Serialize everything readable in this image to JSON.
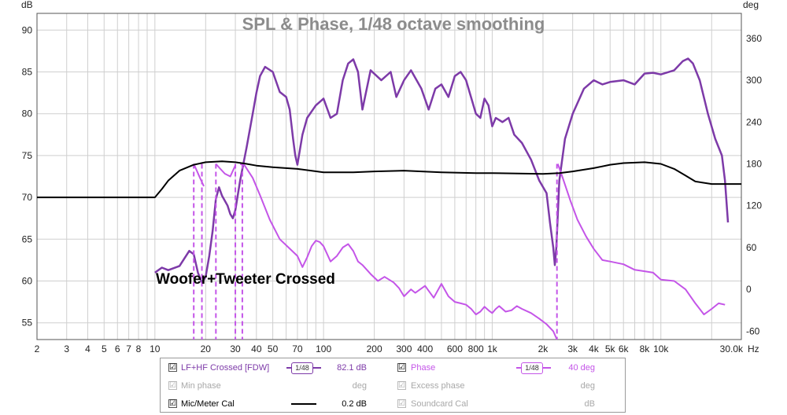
{
  "chart_data": {
    "type": "line",
    "title": "SPL & Phase, 1/48 octave smoothing",
    "ylabel_left": "dB",
    "ylabel_right": "deg",
    "x_unit": "Hz",
    "xlim": [
      2,
      30000
    ],
    "x_scale": "log",
    "ylim_left": [
      53,
      92
    ],
    "ylim_right": [
      -72,
      396
    ],
    "y_ticks_left": [
      55,
      60,
      65,
      70,
      75,
      80,
      85,
      90
    ],
    "y_ticks_right": [
      -60,
      0,
      60,
      120,
      180,
      240,
      300,
      360
    ],
    "y_tick_labels_right": [
      "-60",
      "0",
      "60",
      "120",
      "180",
      "240",
      "300",
      "360"
    ],
    "x_ticks": [
      {
        "v": 2,
        "label": "2"
      },
      {
        "v": 3,
        "label": "3"
      },
      {
        "v": 4,
        "label": "4"
      },
      {
        "v": 5,
        "label": "5"
      },
      {
        "v": 6,
        "label": "6"
      },
      {
        "v": 7,
        "label": "7"
      },
      {
        "v": 8,
        "label": "8"
      },
      {
        "v": 10,
        "label": "10"
      },
      {
        "v": 20,
        "label": "20"
      },
      {
        "v": 30,
        "label": "30"
      },
      {
        "v": 40,
        "label": "40"
      },
      {
        "v": 50,
        "label": "50"
      },
      {
        "v": 70,
        "label": "70"
      },
      {
        "v": 100,
        "label": "100"
      },
      {
        "v": 200,
        "label": "200"
      },
      {
        "v": 300,
        "label": "300"
      },
      {
        "v": 400,
        "label": "400"
      },
      {
        "v": 600,
        "label": "600"
      },
      {
        "v": 800,
        "label": "800"
      },
      {
        "v": 1000,
        "label": "1k"
      },
      {
        "v": 2000,
        "label": "2k"
      },
      {
        "v": 3000,
        "label": "3k"
      },
      {
        "v": 4000,
        "label": "4k"
      },
      {
        "v": 5000,
        "label": "5k"
      },
      {
        "v": 6000,
        "label": "6k"
      },
      {
        "v": 8000,
        "label": "8k"
      },
      {
        "v": 10000,
        "label": "10k"
      },
      {
        "v": 30000,
        "label": "30.0k"
      }
    ],
    "grid": true,
    "annotation": "Woofer+Tweeter Crossed",
    "series": [
      {
        "name": "LF+HF Crossed [FDW]",
        "axis": "left",
        "color": "#7d3aa8",
        "points": [
          [
            10,
            61.0
          ],
          [
            11,
            61.6
          ],
          [
            12,
            61.3
          ],
          [
            14,
            61.8
          ],
          [
            16,
            63.6
          ],
          [
            17,
            63.2
          ],
          [
            18,
            61.0
          ],
          [
            19,
            59.8
          ],
          [
            20,
            60.5
          ],
          [
            21,
            63.0
          ],
          [
            22,
            66.0
          ],
          [
            23,
            69.8
          ],
          [
            24,
            71.2
          ],
          [
            25,
            70.2
          ],
          [
            27,
            69.0
          ],
          [
            28,
            68.0
          ],
          [
            29,
            67.5
          ],
          [
            30,
            68.5
          ],
          [
            32,
            72.0
          ],
          [
            35,
            76.0
          ],
          [
            38,
            80.0
          ],
          [
            40,
            82.5
          ],
          [
            42,
            84.5
          ],
          [
            45,
            85.6
          ],
          [
            50,
            85.0
          ],
          [
            55,
            82.6
          ],
          [
            60,
            82.0
          ],
          [
            63,
            80.5
          ],
          [
            66,
            77.0
          ],
          [
            68,
            75.0
          ],
          [
            70,
            73.9
          ],
          [
            75,
            77.5
          ],
          [
            80,
            79.5
          ],
          [
            90,
            81.0
          ],
          [
            100,
            81.8
          ],
          [
            110,
            79.5
          ],
          [
            120,
            80.0
          ],
          [
            130,
            84.0
          ],
          [
            140,
            86.0
          ],
          [
            150,
            86.5
          ],
          [
            160,
            85.0
          ],
          [
            170,
            80.5
          ],
          [
            190,
            85.2
          ],
          [
            220,
            84.0
          ],
          [
            250,
            85.0
          ],
          [
            270,
            82.0
          ],
          [
            300,
            84.0
          ],
          [
            330,
            85.2
          ],
          [
            380,
            83.0
          ],
          [
            420,
            80.5
          ],
          [
            460,
            83.0
          ],
          [
            500,
            83.5
          ],
          [
            550,
            82.0
          ],
          [
            600,
            84.5
          ],
          [
            650,
            85.0
          ],
          [
            700,
            84.0
          ],
          [
            800,
            80.0
          ],
          [
            850,
            79.5
          ],
          [
            900,
            81.8
          ],
          [
            950,
            81.0
          ],
          [
            1000,
            78.5
          ],
          [
            1050,
            79.5
          ],
          [
            1150,
            79.0
          ],
          [
            1250,
            79.5
          ],
          [
            1350,
            77.5
          ],
          [
            1500,
            76.5
          ],
          [
            1700,
            74.5
          ],
          [
            1900,
            72.0
          ],
          [
            2100,
            70.5
          ],
          [
            2200,
            67.0
          ],
          [
            2300,
            64.0
          ],
          [
            2350,
            61.9
          ],
          [
            2400,
            64.0
          ],
          [
            2500,
            72.0
          ],
          [
            2700,
            77.0
          ],
          [
            3000,
            80.0
          ],
          [
            3500,
            83.0
          ],
          [
            4000,
            84.0
          ],
          [
            4500,
            83.5
          ],
          [
            5000,
            83.8
          ],
          [
            6000,
            84.0
          ],
          [
            7000,
            83.5
          ],
          [
            8000,
            84.8
          ],
          [
            9000,
            84.9
          ],
          [
            10000,
            84.7
          ],
          [
            12000,
            85.2
          ],
          [
            13500,
            86.3
          ],
          [
            14500,
            86.6
          ],
          [
            15500,
            86.0
          ],
          [
            17000,
            84.0
          ],
          [
            19000,
            80.0
          ],
          [
            21000,
            77.0
          ],
          [
            23000,
            75.0
          ],
          [
            24000,
            72.0
          ],
          [
            25000,
            67.0
          ]
        ]
      },
      {
        "name": "Phase",
        "axis": "right",
        "color": "#c455e8",
        "segments": [
          [
            [
              17.0,
              180
            ],
            [
              17.6,
              172
            ],
            [
              18.5,
              160
            ],
            [
              19.5,
              148
            ]
          ],
          [
            [
              23.0,
              180
            ],
            [
              24.0,
              175
            ],
            [
              26.0,
              166
            ],
            [
              28.0,
              162
            ],
            [
              30.0,
              178
            ]
          ],
          [
            [
              32.0,
              180
            ],
            [
              34.0,
              178
            ],
            [
              38.0,
              160
            ],
            [
              42.0,
              135
            ],
            [
              48.0,
              100
            ],
            [
              55.0,
              72
            ],
            [
              62.0,
              60
            ],
            [
              70.0,
              48
            ],
            [
              75.0,
              32
            ],
            [
              80.0,
              46
            ],
            [
              85.0,
              62
            ],
            [
              90.0,
              70
            ],
            [
              95.0,
              68
            ],
            [
              100.0,
              62
            ],
            [
              110.0,
              40
            ],
            [
              120.0,
              48
            ],
            [
              130.0,
              60
            ],
            [
              140.0,
              65
            ],
            [
              150.0,
              55
            ],
            [
              160.0,
              40
            ],
            [
              170.0,
              35
            ],
            [
              190.0,
              22
            ],
            [
              210.0,
              12
            ],
            [
              230.0,
              18
            ],
            [
              260.0,
              10
            ],
            [
              280.0,
              2
            ],
            [
              300.0,
              -10
            ],
            [
              330.0,
              0
            ],
            [
              350.0,
              -5
            ],
            [
              400.0,
              5
            ],
            [
              450.0,
              -12
            ],
            [
              500.0,
              8
            ],
            [
              550.0,
              -10
            ],
            [
              600.0,
              -18
            ],
            [
              650.0,
              -20
            ],
            [
              700.0,
              -22
            ],
            [
              750.0,
              -28
            ],
            [
              800.0,
              -36
            ],
            [
              850.0,
              -32
            ],
            [
              900.0,
              -25
            ],
            [
              950.0,
              -30
            ],
            [
              1000.0,
              -34
            ],
            [
              1050.0,
              -28
            ],
            [
              1100.0,
              -24
            ],
            [
              1200.0,
              -32
            ],
            [
              1300.0,
              -30
            ],
            [
              1400.0,
              -24
            ],
            [
              1500.0,
              -28
            ],
            [
              1700.0,
              -34
            ],
            [
              1900.0,
              -42
            ],
            [
              2100.0,
              -50
            ],
            [
              2300.0,
              -60
            ],
            [
              2420.0,
              -72
            ]
          ],
          [
            [
              2450.0,
              180
            ],
            [
              2600.0,
              162
            ],
            [
              2900.0,
              128
            ],
            [
              3200.0,
              100
            ],
            [
              3600.0,
              76
            ],
            [
              4000.0,
              58
            ],
            [
              4500.0,
              42
            ],
            [
              5000.0,
              40
            ],
            [
              6000.0,
              36
            ],
            [
              7000.0,
              28
            ],
            [
              8000.0,
              26
            ],
            [
              9000.0,
              24
            ],
            [
              10000.0,
              14
            ],
            [
              12000.0,
              12
            ],
            [
              14000.0,
              0
            ],
            [
              16000.0,
              -20
            ],
            [
              18000.0,
              -36
            ],
            [
              20000.0,
              -28
            ],
            [
              22000.0,
              -20
            ],
            [
              24000.0,
              -22
            ]
          ]
        ],
        "verticals": [
          17.0,
          19.0,
          23.0,
          30.0,
          33.0,
          2420.0
        ]
      },
      {
        "name": "Mic/Meter Cal",
        "axis": "left",
        "color": "#000000",
        "points": [
          [
            2,
            70.0
          ],
          [
            10,
            70.0
          ],
          [
            11,
            71.0
          ],
          [
            12,
            72.0
          ],
          [
            14,
            73.2
          ],
          [
            17,
            73.9
          ],
          [
            20,
            74.2
          ],
          [
            25,
            74.3
          ],
          [
            30,
            74.2
          ],
          [
            35,
            74.0
          ],
          [
            40,
            73.8
          ],
          [
            50,
            73.6
          ],
          [
            70,
            73.4
          ],
          [
            100,
            73.0
          ],
          [
            150,
            73.0
          ],
          [
            200,
            73.1
          ],
          [
            300,
            73.2
          ],
          [
            500,
            73.0
          ],
          [
            800,
            72.9
          ],
          [
            1000,
            72.9
          ],
          [
            2000,
            72.8
          ],
          [
            2500,
            72.9
          ],
          [
            3000,
            73.1
          ],
          [
            4000,
            73.5
          ],
          [
            5000,
            73.9
          ],
          [
            6000,
            74.1
          ],
          [
            8000,
            74.2
          ],
          [
            10000,
            74.0
          ],
          [
            12000,
            73.4
          ],
          [
            14000,
            72.6
          ],
          [
            16000,
            71.9
          ],
          [
            20000,
            71.6
          ],
          [
            30000,
            71.6
          ]
        ]
      }
    ]
  },
  "legend": {
    "rows": [
      {
        "check_left": "☑",
        "label_left": "LF+HF Crossed [FDW]",
        "badge_left": "1/48",
        "value_left": "82.1 dB",
        "check_right": "☑",
        "label_right": "Phase",
        "badge_right": "1/48",
        "value_right": "40 deg"
      },
      {
        "check_left": "☑",
        "label_left": "Min phase",
        "value_left": "deg",
        "check_right": "☑",
        "label_right": "Excess phase",
        "value_right": "deg"
      },
      {
        "check_left": "☑",
        "label_left": "Mic/Meter Cal",
        "value_left": "0.2 dB",
        "check_right": "☑",
        "label_right": "Soundcard Cal",
        "value_right": "dB"
      }
    ]
  }
}
